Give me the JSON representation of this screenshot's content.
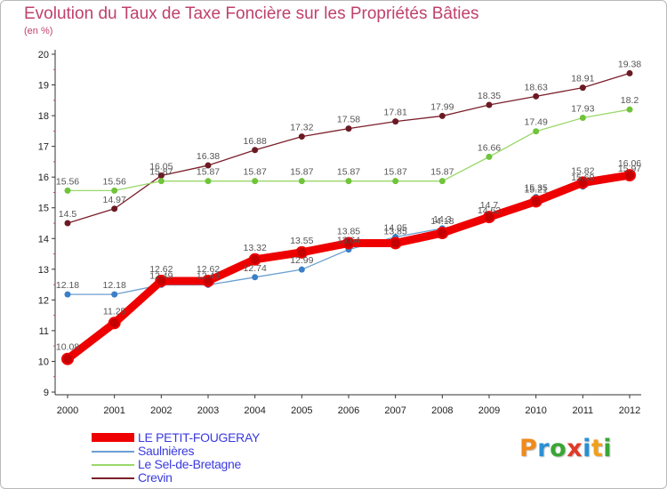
{
  "header": {
    "title": "Evolution du Taux de Taxe Foncière sur les Propriétés Bâties",
    "unit": "(en %)"
  },
  "logo": {
    "text": "Proxiti",
    "letters": [
      {
        "ch": "P",
        "color": "#f08a1c"
      },
      {
        "ch": "r",
        "color": "#2a8fd4"
      },
      {
        "ch": "o",
        "color": "#3aa535"
      },
      {
        "ch": "x",
        "color": "#e03a28"
      },
      {
        "ch": "i",
        "color": "#2a8fd4"
      },
      {
        "ch": "t",
        "color": "#f0a01c"
      },
      {
        "ch": "i",
        "color": "#3aa535"
      }
    ]
  },
  "chart_data": {
    "type": "line",
    "title": "Evolution du Taux de Taxe Foncière sur les Propriétés Bâties",
    "ylabel": "(en %)",
    "xlabel": "",
    "ylim": [
      9,
      20
    ],
    "grid": false,
    "legend_position": "bottom-left",
    "categories": [
      "2000",
      "2001",
      "2002",
      "2003",
      "2004",
      "2005",
      "2006",
      "2007",
      "2008",
      "2009",
      "2010",
      "2011",
      "2012"
    ],
    "yticks": [
      "9",
      "10",
      "11",
      "12",
      "13",
      "14",
      "15",
      "16",
      "17",
      "18",
      "19",
      "20"
    ],
    "series": [
      {
        "name": "Crevin",
        "color": "#7a1f2a",
        "marker": "#6b1a23",
        "values": [
          14.5,
          14.97,
          16.05,
          16.38,
          16.88,
          17.32,
          17.58,
          17.81,
          17.99,
          18.35,
          18.63,
          18.91,
          19.38
        ],
        "labels": [
          "14.5",
          "14.97",
          "16.05",
          "16.38",
          "16.88",
          "17.32",
          "17.58",
          "17.81",
          "17.99",
          "18.35",
          "18.63",
          "18.91",
          "19.38"
        ]
      },
      {
        "name": "Le Sel-de-Bretagne",
        "color": "#9ad86a",
        "marker": "#6fc43a",
        "values": [
          15.56,
          15.56,
          15.87,
          15.87,
          15.87,
          15.87,
          15.87,
          15.87,
          15.87,
          16.66,
          17.49,
          17.93,
          18.2
        ],
        "labels": [
          "15.56",
          "15.56",
          "15.87",
          "15.87",
          "15.87",
          "15.87",
          "15.87",
          "15.87",
          "15.87",
          "16.66",
          "17.49",
          "17.93",
          "18.2"
        ]
      },
      {
        "name": "Saulnières",
        "color": "#6a9fd0",
        "marker": "#3a7fc8",
        "values": [
          12.18,
          12.18,
          12.49,
          12.49,
          12.74,
          12.99,
          13.64,
          14.05,
          14.33,
          14.62,
          15.35,
          15.69,
          15.97
        ],
        "labels": [
          "12.18",
          "12.18",
          "12.49",
          "12.49",
          "12.74",
          "12.99",
          "13.64",
          "14.05",
          "14.3",
          "14.62",
          "15.35",
          "15.69",
          "15.97"
        ]
      },
      {
        "name": "LE PETIT-FOUGERAY",
        "color": "#ee0000",
        "marker": "#c40000",
        "values": [
          10.08,
          11.25,
          12.62,
          12.62,
          13.32,
          13.55,
          13.85,
          13.85,
          14.18,
          14.7,
          15.21,
          15.82,
          16.06
        ],
        "labels": [
          "10.08",
          "11.25",
          "12.62",
          "12.62",
          "13.32",
          "13.55",
          "13.85",
          "13.85",
          "14.18",
          "14.7",
          "15.21",
          "15.82",
          "16.06"
        ]
      }
    ],
    "legend": [
      "LE PETIT-FOUGERAY",
      "Saulnières",
      "Le Sel-de-Bretagne",
      "Crevin"
    ]
  }
}
